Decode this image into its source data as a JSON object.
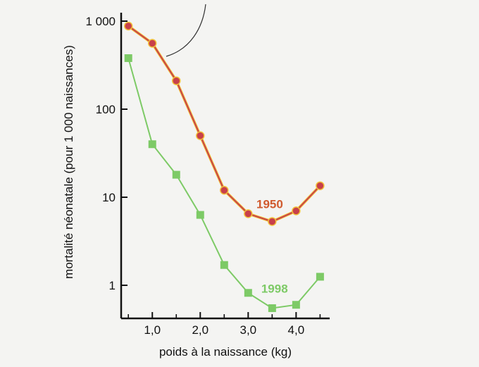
{
  "chart_data": {
    "type": "line",
    "xlabel": "poids à la naissance (kg)",
    "ylabel": "mortalité néonatale (pour 1 000 naissances)",
    "yscale": "log",
    "xlim": [
      0.35,
      4.7
    ],
    "ylim": [
      0.28,
      1000
    ],
    "xticks": [
      {
        "value": 1.0,
        "label": "1,0"
      },
      {
        "value": 2.0,
        "label": "2,0"
      },
      {
        "value": 3.0,
        "label": "3,0"
      },
      {
        "value": 4.0,
        "label": "4,0"
      }
    ],
    "xminor_ticks": [
      0.5,
      1.5,
      2.5,
      3.5,
      4.5
    ],
    "yticks": [
      {
        "value": 1,
        "label": "1"
      },
      {
        "value": 10,
        "label": "10"
      },
      {
        "value": 100,
        "label": "100"
      },
      {
        "value": 1000,
        "label": "1 000"
      }
    ],
    "grid": false,
    "legend": "inline labels near each curve",
    "series": [
      {
        "name": "1950",
        "color": "#c8404a",
        "marker": "circle",
        "x": [
          0.5,
          1.0,
          1.5,
          2.0,
          2.5,
          3.0,
          3.5,
          4.0,
          4.5
        ],
        "y": [
          880,
          560,
          210,
          50,
          12,
          6.5,
          5.3,
          7,
          13.5
        ]
      },
      {
        "name": "1998",
        "color": "#7dca66",
        "marker": "square",
        "x": [
          0.5,
          1.0,
          1.5,
          2.0,
          2.5,
          3.0,
          3.5,
          4.0,
          4.5
        ],
        "y": [
          380,
          40,
          18,
          6.3,
          1.7,
          0.82,
          0.55,
          0.6,
          1.25
        ]
      }
    ]
  }
}
